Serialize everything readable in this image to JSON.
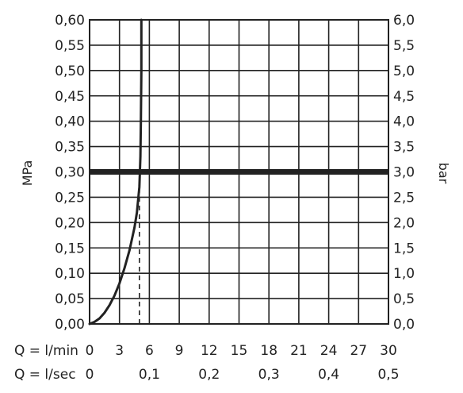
{
  "chart_data": {
    "type": "line",
    "title": "",
    "left_axis": {
      "label": "MPa",
      "ylim": [
        0,
        0.6
      ],
      "ticks": [
        "0,00",
        "0,05",
        "0,10",
        "0,15",
        "0,20",
        "0,25",
        "0,30",
        "0,35",
        "0,40",
        "0,45",
        "0,50",
        "0,55",
        "0,60"
      ]
    },
    "right_axis": {
      "label": "bar",
      "ylim": [
        0,
        6
      ],
      "ticks": [
        "0,0",
        "0,5",
        "1,0",
        "1,5",
        "2,0",
        "2,5",
        "3,0",
        "3,5",
        "4,0",
        "4,5",
        "5,0",
        "5,5",
        "6,0"
      ]
    },
    "x_axis_lmin": {
      "label": "Q = l/min",
      "xlim": [
        0,
        30
      ],
      "ticks": [
        "0",
        "3",
        "6",
        "9",
        "12",
        "15",
        "18",
        "21",
        "24",
        "27",
        "30"
      ]
    },
    "x_axis_lsec": {
      "label": "Q = l/sec",
      "ticks": [
        {
          "value": 0,
          "label": "0"
        },
        {
          "value": 0.1,
          "label": "0,1"
        },
        {
          "value": 0.2,
          "label": "0,2"
        },
        {
          "value": 0.3,
          "label": "0,3"
        },
        {
          "value": 0.4,
          "label": "0,4"
        },
        {
          "value": 0.5,
          "label": "0,5"
        }
      ]
    },
    "grid": true,
    "series": [
      {
        "x": [
          0,
          0.5,
          1,
          1.5,
          2,
          2.5,
          3,
          3.5,
          4,
          4.5,
          4.75,
          5,
          5.1,
          5.15,
          5.2,
          5.2
        ],
        "y": [
          0,
          0.004,
          0.011,
          0.022,
          0.037,
          0.056,
          0.08,
          0.11,
          0.145,
          0.19,
          0.22,
          0.27,
          0.33,
          0.4,
          0.5,
          0.6
        ],
        "color": "#222222"
      }
    ],
    "reference_line": {
      "y": 0.3,
      "color": "#222222"
    },
    "marker_line": {
      "x": 5,
      "y_from": 0,
      "y_to": 0.3,
      "style": "dashed"
    }
  }
}
